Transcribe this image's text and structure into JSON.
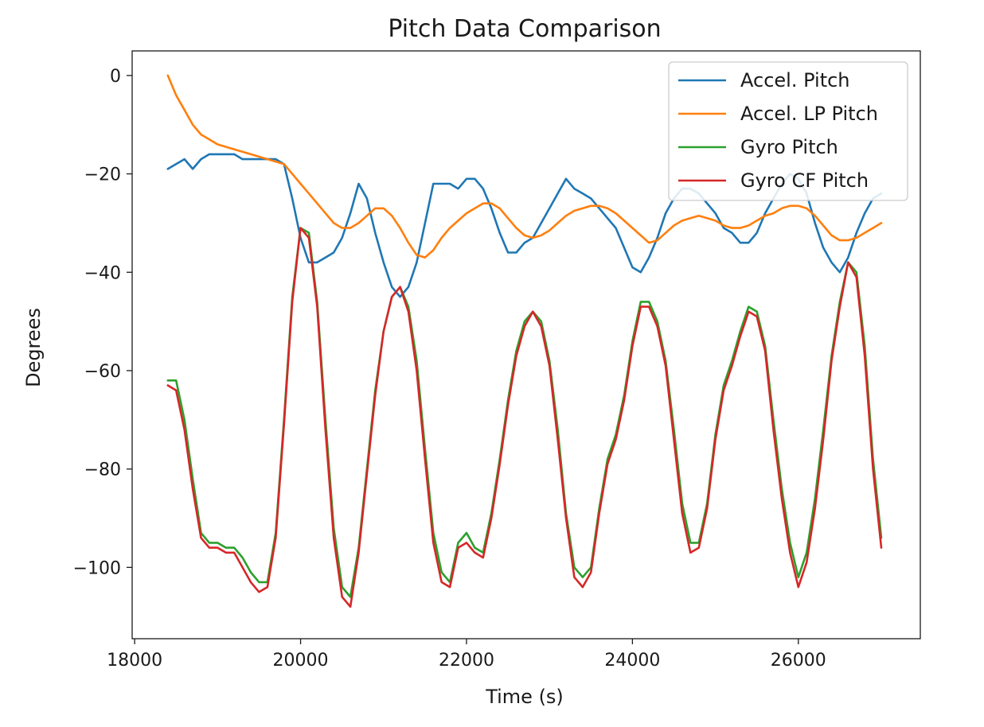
{
  "chart_data": {
    "type": "line",
    "title": "Pitch Data Comparison",
    "xlabel": "Time (s)",
    "ylabel": "Degrees",
    "xlim": [
      17970,
      27470
    ],
    "ylim": [
      -114.5,
      5
    ],
    "xticks": [
      18000,
      20000,
      22000,
      24000,
      26000
    ],
    "yticks": [
      0,
      -20,
      -40,
      -60,
      -80,
      -100
    ],
    "xtick_labels": [
      "18000",
      "20000",
      "22000",
      "24000",
      "26000"
    ],
    "ytick_labels": [
      "0",
      "−20",
      "−40",
      "−60",
      "−80",
      "−100"
    ],
    "grid": false,
    "legend_position": "top-right",
    "series": [
      {
        "name": "Accel. Pitch",
        "color": "#1f77b4",
        "x": [
          18400,
          18500,
          18600,
          18700,
          18800,
          18900,
          19000,
          19100,
          19200,
          19300,
          19400,
          19500,
          19600,
          19700,
          19800,
          19900,
          20000,
          20100,
          20200,
          20300,
          20400,
          20500,
          20600,
          20700,
          20800,
          20900,
          21000,
          21100,
          21200,
          21300,
          21400,
          21500,
          21600,
          21700,
          21800,
          21900,
          22000,
          22100,
          22200,
          22300,
          22400,
          22500,
          22600,
          22700,
          22800,
          22900,
          23000,
          23100,
          23200,
          23300,
          23400,
          23500,
          23600,
          23700,
          23800,
          23900,
          24000,
          24100,
          24200,
          24300,
          24400,
          24500,
          24600,
          24700,
          24800,
          24900,
          25000,
          25100,
          25200,
          25300,
          25400,
          25500,
          25600,
          25700,
          25800,
          25900,
          26000,
          26100,
          26200,
          26300,
          26400,
          26500,
          26600,
          26700,
          26800,
          26900,
          27000
        ],
        "y": [
          -19,
          -18,
          -17,
          -19,
          -17,
          -16,
          -16,
          -16,
          -16,
          -17,
          -17,
          -17,
          -17,
          -17,
          -18,
          -25,
          -33,
          -38,
          -38,
          -37,
          -36,
          -33,
          -28,
          -22,
          -25,
          -32,
          -38,
          -43,
          -45,
          -43,
          -38,
          -30,
          -22,
          -22,
          -22,
          -23,
          -21,
          -21,
          -23,
          -27,
          -32,
          -36,
          -36,
          -34,
          -33,
          -30,
          -27,
          -24,
          -21,
          -23,
          -24,
          -25,
          -27,
          -29,
          -31,
          -35,
          -39,
          -40,
          -37,
          -33,
          -28,
          -25,
          -23,
          -23,
          -24,
          -26,
          -28,
          -31,
          -32,
          -34,
          -34,
          -32,
          -28,
          -25,
          -22,
          -20,
          -21,
          -24,
          -30,
          -35,
          -38,
          -40,
          -37,
          -32,
          -28,
          -25,
          -24
        ]
      },
      {
        "name": "Accel. LP Pitch",
        "color": "#ff7f0e",
        "x": [
          18400,
          18500,
          18600,
          18700,
          18800,
          18900,
          19000,
          19200,
          19400,
          19600,
          19800,
          19900,
          20000,
          20100,
          20200,
          20300,
          20400,
          20500,
          20600,
          20700,
          20800,
          20900,
          21000,
          21100,
          21200,
          21300,
          21400,
          21500,
          21600,
          21700,
          21800,
          21900,
          22000,
          22100,
          22200,
          22300,
          22400,
          22500,
          22600,
          22700,
          22800,
          22900,
          23000,
          23100,
          23200,
          23300,
          23400,
          23500,
          23600,
          23700,
          23800,
          23900,
          24000,
          24100,
          24200,
          24300,
          24400,
          24500,
          24600,
          24700,
          24800,
          24900,
          25000,
          25100,
          25200,
          25300,
          25400,
          25500,
          25600,
          25700,
          25800,
          25900,
          26000,
          26100,
          26200,
          26300,
          26400,
          26500,
          26600,
          26700,
          26800,
          26900,
          27000
        ],
        "y": [
          0,
          -4,
          -7,
          -10,
          -12,
          -13,
          -14,
          -15,
          -16,
          -17,
          -18,
          -20,
          -22,
          -24,
          -26,
          -28,
          -30,
          -31,
          -31,
          -30,
          -28.5,
          -27,
          -27,
          -28.5,
          -31,
          -34,
          -36.5,
          -37,
          -35.5,
          -33,
          -31,
          -29.5,
          -28,
          -27,
          -26,
          -26,
          -27,
          -29,
          -31,
          -32.5,
          -33,
          -32.5,
          -31.5,
          -30,
          -28.5,
          -27.5,
          -27,
          -26.5,
          -26.5,
          -27,
          -28,
          -29.5,
          -31,
          -32.5,
          -34,
          -33.5,
          -32,
          -30.5,
          -29.5,
          -29,
          -28.5,
          -29,
          -29.5,
          -30.5,
          -31,
          -31,
          -30.5,
          -29.5,
          -28.5,
          -28,
          -27,
          -26.5,
          -26.5,
          -27,
          -28.5,
          -30.5,
          -32.5,
          -33.5,
          -33.5,
          -33,
          -32,
          -31,
          -30
        ]
      },
      {
        "name": "Gyro Pitch",
        "color": "#2ca02c",
        "x": [
          18400,
          18500,
          18600,
          18700,
          18800,
          18900,
          19000,
          19100,
          19200,
          19300,
          19400,
          19500,
          19600,
          19700,
          19800,
          19900,
          20000,
          20100,
          20200,
          20300,
          20400,
          20500,
          20600,
          20700,
          20800,
          20900,
          21000,
          21100,
          21200,
          21300,
          21400,
          21500,
          21600,
          21700,
          21800,
          21900,
          22000,
          22100,
          22200,
          22300,
          22400,
          22500,
          22600,
          22700,
          22800,
          22900,
          23000,
          23100,
          23200,
          23300,
          23400,
          23500,
          23600,
          23700,
          23800,
          23900,
          24000,
          24100,
          24200,
          24300,
          24400,
          24500,
          24600,
          24700,
          24800,
          24900,
          25000,
          25100,
          25200,
          25300,
          25400,
          25500,
          25600,
          25700,
          25800,
          25900,
          26000,
          26100,
          26200,
          26300,
          26400,
          26500,
          26600,
          26700,
          26800,
          26900,
          27000
        ],
        "y": [
          -62,
          -62,
          -70,
          -82,
          -93,
          -95,
          -95,
          -96,
          -96,
          -98,
          -101,
          -103,
          -103,
          -93,
          -70,
          -45,
          -31,
          -32,
          -46,
          -70,
          -92,
          -104,
          -106,
          -96,
          -80,
          -64,
          -52,
          -45,
          -43,
          -47,
          -58,
          -76,
          -93,
          -101,
          -103,
          -95,
          -93,
          -96,
          -97,
          -89,
          -78,
          -66,
          -56,
          -50,
          -48,
          -50,
          -58,
          -72,
          -89,
          -100,
          -102,
          -100,
          -88,
          -78,
          -73,
          -65,
          -54,
          -46,
          -46,
          -50,
          -58,
          -72,
          -87,
          -95,
          -95,
          -87,
          -73,
          -63,
          -58,
          -52,
          -47,
          -48,
          -55,
          -70,
          -84,
          -95,
          -102,
          -97,
          -86,
          -72,
          -57,
          -46,
          -38,
          -40,
          -55,
          -78,
          -94
        ]
      },
      {
        "name": "Gyro CF Pitch",
        "color": "#d62728",
        "x": [
          18400,
          18500,
          18600,
          18700,
          18800,
          18900,
          19000,
          19100,
          19200,
          19300,
          19400,
          19500,
          19600,
          19700,
          19800,
          19900,
          20000,
          20100,
          20200,
          20300,
          20400,
          20500,
          20600,
          20700,
          20800,
          20900,
          21000,
          21100,
          21200,
          21300,
          21400,
          21500,
          21600,
          21700,
          21800,
          21900,
          22000,
          22100,
          22200,
          22300,
          22400,
          22500,
          22600,
          22700,
          22800,
          22900,
          23000,
          23100,
          23200,
          23300,
          23400,
          23500,
          23600,
          23700,
          23800,
          23900,
          24000,
          24100,
          24200,
          24300,
          24400,
          24500,
          24600,
          24700,
          24800,
          24900,
          25000,
          25100,
          25200,
          25300,
          25400,
          25500,
          25600,
          25700,
          25800,
          25900,
          26000,
          26100,
          26200,
          26300,
          26400,
          26500,
          26600,
          26700,
          26800,
          26900,
          27000
        ],
        "y": [
          -63,
          -64,
          -72,
          -84,
          -94,
          -96,
          -96,
          -97,
          -97,
          -100,
          -103,
          -105,
          -104,
          -94,
          -71,
          -46,
          -31,
          -33,
          -47,
          -72,
          -94,
          -106,
          -108,
          -97,
          -81,
          -65,
          -52,
          -45,
          -43,
          -48,
          -60,
          -78,
          -95,
          -103,
          -104,
          -96,
          -95,
          -97,
          -98,
          -90,
          -79,
          -67,
          -57,
          -51,
          -48,
          -51,
          -59,
          -74,
          -90,
          -102,
          -104,
          -101,
          -89,
          -79,
          -74,
          -66,
          -55,
          -47,
          -47,
          -51,
          -59,
          -74,
          -89,
          -97,
          -96,
          -88,
          -74,
          -64,
          -59,
          -53,
          -48,
          -49,
          -56,
          -72,
          -86,
          -97,
          -104,
          -99,
          -88,
          -74,
          -58,
          -47,
          -38,
          -41,
          -57,
          -80,
          -96
        ]
      }
    ]
  }
}
